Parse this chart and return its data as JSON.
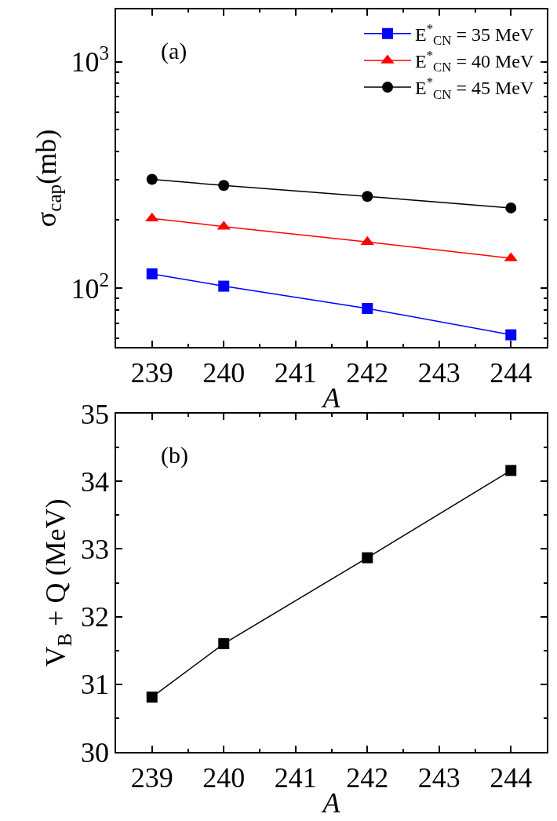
{
  "chart_data": [
    {
      "type": "line",
      "xlabel": "A",
      "ylabel": "σ$_{cap}$(mb)",
      "annotations": [
        "(a)"
      ],
      "log": "y",
      "legend": "top right",
      "x": [
        239,
        240,
        242,
        244
      ],
      "xlim": [
        238.5,
        244.5
      ],
      "xticks": [
        239,
        240,
        241,
        242,
        243,
        244
      ],
      "ylim": [
        55,
        1700
      ],
      "yticks": [
        {
          "value": 100,
          "label": "10$^{2}$"
        },
        {
          "value": 1000,
          "label": "10$^{3}$"
        }
      ],
      "line_style": "solid",
      "series": [
        {
          "name": "E$^{*}$$_{CN}$ = 35 MeV",
          "color": "#0000ff",
          "marker": "square",
          "values": [
            115.6,
            102,
            81.3,
            62.2
          ]
        },
        {
          "name": "E$^{*}$$_{CN}$ = 40 MeV",
          "color": "#ff0000",
          "marker": "triangle",
          "values": [
            203,
            187,
            160,
            135.5
          ]
        },
        {
          "name": "E$^{*}$$_{CN}$ = 45 MeV",
          "color": "#000000",
          "marker": "circle",
          "values": [
            302,
            284,
            254,
            226
          ]
        }
      ]
    },
    {
      "type": "line",
      "xlabel": "A",
      "ylabel": "V$_{B}$ + Q (MeV)",
      "annotations": [
        "(b)"
      ],
      "x": [
        239,
        240,
        242,
        244
      ],
      "xlim": [
        238.5,
        244.5
      ],
      "xticks": [
        239,
        240,
        241,
        242,
        243,
        244
      ],
      "ylim": [
        30,
        35
      ],
      "yticks": [
        30,
        31,
        32,
        33,
        34,
        35
      ],
      "line_style": "solid",
      "marker": "square",
      "series": [
        {
          "color": "#000000",
          "values": [
            30.81,
            31.6,
            32.87,
            34.16
          ]
        }
      ]
    }
  ]
}
